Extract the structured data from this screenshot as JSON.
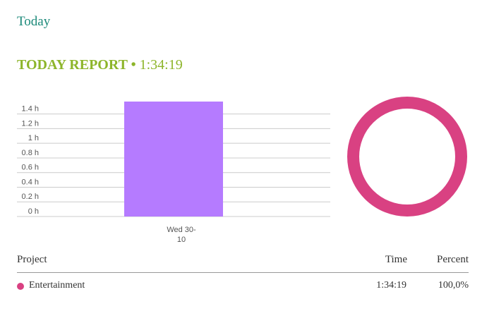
{
  "header": {
    "title": "Today"
  },
  "report": {
    "title": "TODAY REPORT",
    "separator": "•",
    "total": "1:34:19"
  },
  "chart_data": [
    {
      "type": "bar",
      "categories": [
        "Wed 30-10"
      ],
      "values": [
        1.57
      ],
      "color": "#b57bff",
      "ylim": [
        0,
        1.57
      ],
      "yticks": [
        {
          "value": 0,
          "label": "0 h"
        },
        {
          "value": 0.2,
          "label": "0.2 h"
        },
        {
          "value": 0.4,
          "label": "0.4 h"
        },
        {
          "value": 0.6,
          "label": "0.6 h"
        },
        {
          "value": 0.8,
          "label": "0.8 h"
        },
        {
          "value": 1,
          "label": "1 h"
        },
        {
          "value": 1.2,
          "label": "1.2 h"
        },
        {
          "value": 1.4,
          "label": "1.4 h"
        }
      ],
      "grid": true
    },
    {
      "type": "donut",
      "categories": [
        "Entertainment"
      ],
      "values": [
        100
      ],
      "colors": [
        "#d94182"
      ]
    }
  ],
  "table": {
    "columns": [
      "Project",
      "Time",
      "Percent"
    ],
    "rows": [
      [
        "Entertainment",
        "1:34:19",
        "100,0%"
      ]
    ],
    "colors": [
      "#d94182"
    ]
  }
}
